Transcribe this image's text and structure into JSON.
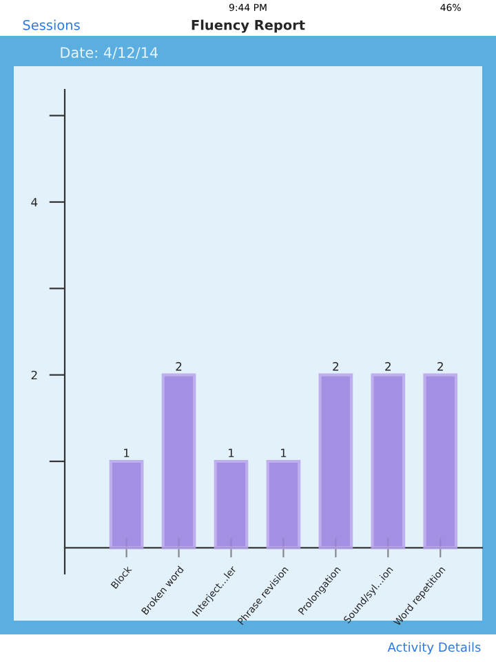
{
  "chart_data": {
    "type": "bar",
    "title": "Fluency Report",
    "categories": [
      "Block",
      "Broken word",
      "Interject…ler",
      "Phrase revision",
      "Prolongation",
      "Sound/syl…ion",
      "Word repetition"
    ],
    "values": [
      1,
      2,
      1,
      1,
      2,
      2,
      2
    ],
    "color": "#9a80de",
    "ylim": [
      -0.3,
      5.3
    ],
    "yticks": [
      {
        "value": 1,
        "label": null
      },
      2,
      {
        "value": 3,
        "label": null
      },
      4,
      {
        "value": 5,
        "label": null
      }
    ],
    "data_labels": true,
    "grid": false,
    "legend": false,
    "annotations": [
      "9:44 PM",
      "46%",
      "Sessions",
      "Date: 4/12/14",
      "Activity Details"
    ]
  }
}
